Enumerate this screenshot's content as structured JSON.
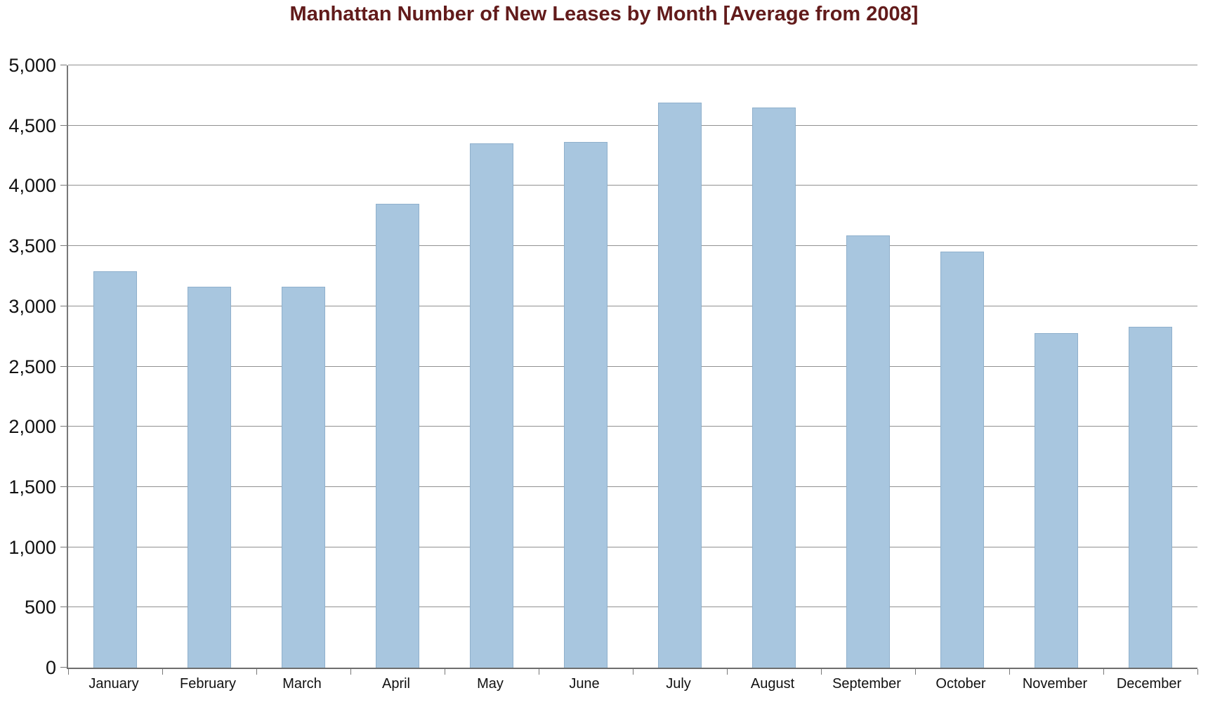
{
  "chart_data": {
    "type": "bar",
    "title": "Manhattan Number of New Leases by Month [Average from 2008]",
    "xlabel": "",
    "ylabel": "",
    "categories": [
      "January",
      "February",
      "March",
      "April",
      "May",
      "June",
      "July",
      "August",
      "September",
      "October",
      "November",
      "December"
    ],
    "values": [
      3290,
      3165,
      3165,
      3850,
      4350,
      4365,
      4690,
      4650,
      3590,
      3455,
      2780,
      2830
    ],
    "ylim": [
      0,
      5000
    ],
    "ytick_step": 500,
    "ytick_labels_top_to_bottom": [
      "5,000",
      "4,500",
      "4,000",
      "3,500",
      "3,000",
      "2,500",
      "2,000",
      "1,500",
      "1,000",
      "500",
      "0"
    ],
    "grid": true,
    "legend": "none",
    "colors": {
      "bar_fill": "#a8c6df",
      "bar_border": "#8fb0cc",
      "gridline": "#919191",
      "axis": "#787878",
      "title": "#621b1b",
      "tick_label": "#111111",
      "background": "#ffffff"
    }
  }
}
